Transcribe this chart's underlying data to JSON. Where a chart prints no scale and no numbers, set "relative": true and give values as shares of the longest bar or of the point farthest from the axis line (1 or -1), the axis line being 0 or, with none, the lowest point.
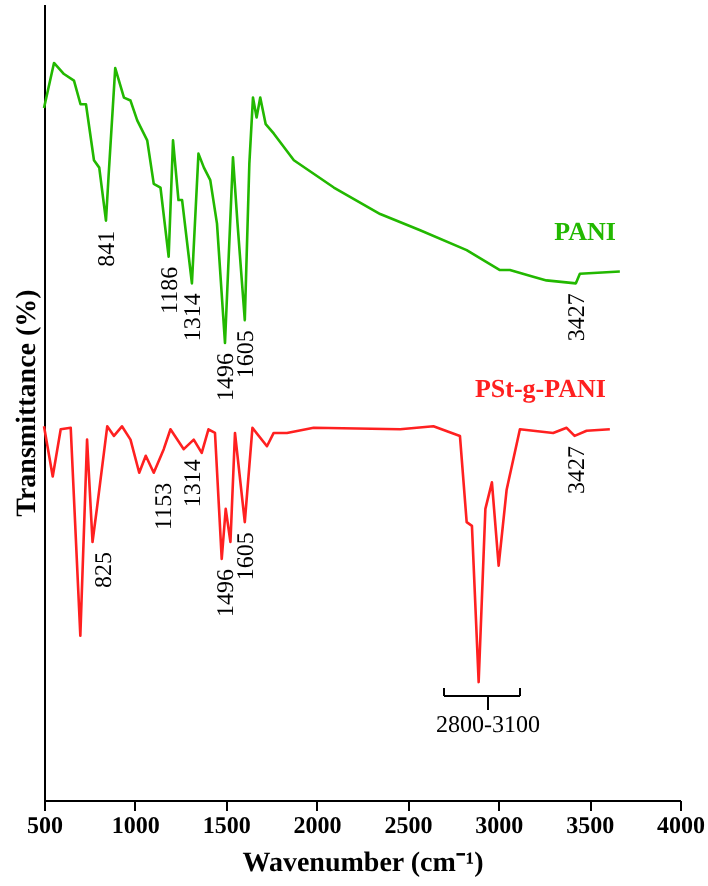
{
  "chart_data": {
    "type": "line",
    "relative": true,
    "xlabel": "Wavenumber (cm⁻¹)",
    "ylabel": "Transmittance (%)",
    "xlim": [
      500,
      4000
    ],
    "xticks": [
      500,
      1000,
      1500,
      2000,
      2500,
      3000,
      3500,
      4000
    ],
    "grid": false,
    "marker": "none",
    "line_style": "solid",
    "series": [
      {
        "name": "PANI",
        "color": "#22b800",
        "x": [
          500,
          555,
          610,
          665,
          701,
          731,
          775,
          804,
          841,
          855,
          892,
          940,
          976,
          1013,
          1068,
          1104,
          1141,
          1186,
          1210,
          1240,
          1260,
          1314,
          1350,
          1380,
          1415,
          1452,
          1496,
          1540,
          1565,
          1605,
          1630,
          1650,
          1670,
          1690,
          1720,
          1765,
          1875,
          2095,
          2350,
          2570,
          2826,
          3009,
          3064,
          3192,
          3265,
          3427,
          3449,
          3669
        ],
        "values": [
          0.939,
          1.0,
          0.985,
          0.976,
          0.944,
          0.944,
          0.868,
          0.858,
          0.786,
          0.845,
          0.993,
          0.953,
          0.949,
          0.922,
          0.895,
          0.836,
          0.831,
          0.737,
          0.895,
          0.814,
          0.814,
          0.701,
          0.877,
          0.858,
          0.841,
          0.782,
          0.62,
          0.872,
          0.782,
          0.651,
          0.863,
          0.953,
          0.926,
          0.953,
          0.917,
          0.904,
          0.868,
          0.831,
          0.795,
          0.773,
          0.746,
          0.719,
          0.719,
          0.71,
          0.705,
          0.701,
          0.714,
          0.717
        ]
      },
      {
        "name": "PSt-g-PANI",
        "color": "#ff2020",
        "x": [
          500,
          548,
          592,
          647,
          700,
          737,
          767,
          793,
          848,
          885,
          929,
          976,
          1024,
          1060,
          1104,
          1159,
          1196,
          1269,
          1324,
          1368,
          1405,
          1441,
          1478,
          1500,
          1526,
          1551,
          1605,
          1647,
          1727,
          1764,
          1837,
          1984,
          2460,
          2643,
          2789,
          2826,
          2855,
          2892,
          2929,
          2965,
          3002,
          3046,
          3119,
          3302,
          3376,
          3420,
          3486,
          3614
        ],
        "values": [
          0.507,
          0.439,
          0.503,
          0.505,
          0.223,
          0.489,
          0.35,
          0.399,
          0.507,
          0.494,
          0.507,
          0.489,
          0.444,
          0.467,
          0.444,
          0.476,
          0.503,
          0.476,
          0.489,
          0.471,
          0.503,
          0.498,
          0.327,
          0.395,
          0.35,
          0.498,
          0.377,
          0.505,
          0.48,
          0.498,
          0.498,
          0.505,
          0.503,
          0.507,
          0.494,
          0.377,
          0.372,
          0.16,
          0.395,
          0.431,
          0.318,
          0.421,
          0.503,
          0.498,
          0.505,
          0.494,
          0.501,
          0.503
        ]
      }
    ],
    "annotations": [
      {
        "text": "841",
        "x": 841,
        "y": 0.786
      },
      {
        "text": "1186",
        "x": 1186,
        "y": 0.737
      },
      {
        "text": "1314",
        "x": 1314,
        "y": 0.701
      },
      {
        "text": "1496",
        "x": 1496,
        "y": 0.62
      },
      {
        "text": "1605",
        "x": 1605,
        "y": 0.651
      },
      {
        "text": "3427",
        "x": 3427,
        "y": 0.701
      },
      {
        "text": "825",
        "x": 825,
        "y": 0.35
      },
      {
        "text": "1153",
        "x": 1153,
        "y": 0.444
      },
      {
        "text": "1314",
        "x": 1314,
        "y": 0.476
      },
      {
        "text": "1496",
        "x": 1496,
        "y": 0.327
      },
      {
        "text": "1605",
        "x": 1605,
        "y": 0.377
      },
      {
        "text": "3427",
        "x": 3427,
        "y": 0.494
      },
      "2800-3100"
    ]
  }
}
